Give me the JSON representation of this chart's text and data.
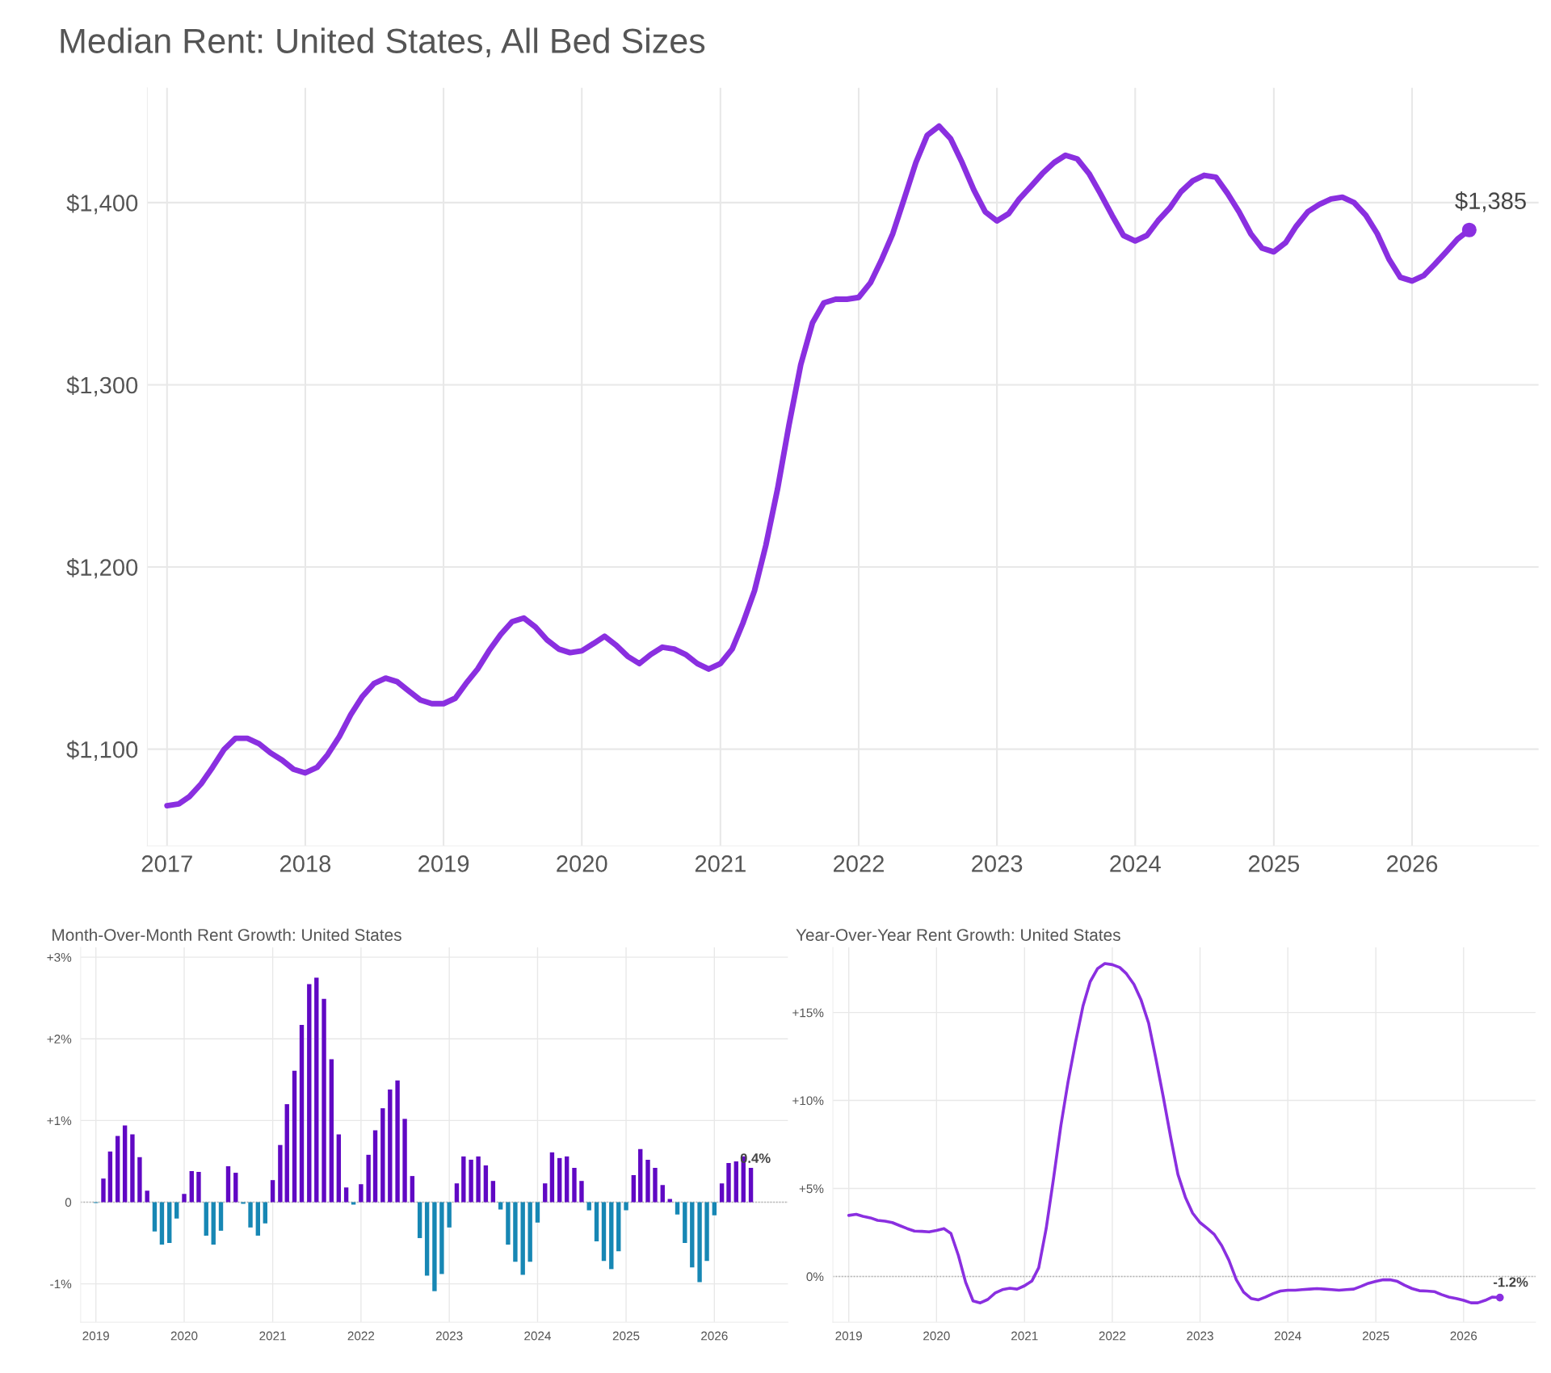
{
  "chart_data": [
    {
      "type": "line",
      "title": "Median Rent: United States, All Bed Sizes",
      "x": [
        "2017-01",
        "2017-02",
        "2017-03",
        "2017-04",
        "2017-05",
        "2017-06",
        "2017-07",
        "2017-08",
        "2017-09",
        "2017-10",
        "2017-11",
        "2017-12",
        "2018-01",
        "2018-02",
        "2018-03",
        "2018-04",
        "2018-05",
        "2018-06",
        "2018-07",
        "2018-08",
        "2018-09",
        "2018-10",
        "2018-11",
        "2018-12",
        "2019-01",
        "2019-02",
        "2019-03",
        "2019-04",
        "2019-05",
        "2019-06",
        "2019-07",
        "2019-08",
        "2019-09",
        "2019-10",
        "2019-11",
        "2019-12",
        "2020-01",
        "2020-02",
        "2020-03",
        "2020-04",
        "2020-05",
        "2020-06",
        "2020-07",
        "2020-08",
        "2020-09",
        "2020-10",
        "2020-11",
        "2020-12",
        "2021-01",
        "2021-02",
        "2021-03",
        "2021-04",
        "2021-05",
        "2021-06",
        "2021-07",
        "2021-08",
        "2021-09",
        "2021-10",
        "2021-11",
        "2021-12",
        "2022-01",
        "2022-02",
        "2022-03",
        "2022-04",
        "2022-05",
        "2022-06",
        "2022-07",
        "2022-08",
        "2022-09",
        "2022-10",
        "2022-11",
        "2022-12",
        "2023-01",
        "2023-02",
        "2023-03",
        "2023-04",
        "2023-05",
        "2023-06",
        "2023-07",
        "2023-08",
        "2023-09",
        "2023-10",
        "2023-11",
        "2023-12",
        "2024-01",
        "2024-02",
        "2024-03",
        "2024-04",
        "2024-05",
        "2024-06",
        "2024-07",
        "2024-08",
        "2024-09",
        "2024-10",
        "2024-11",
        "2024-12",
        "2025-01",
        "2025-02",
        "2025-03",
        "2025-04",
        "2025-05",
        "2025-06",
        "2025-07",
        "2025-08",
        "2025-09",
        "2025-10",
        "2025-11",
        "2025-12",
        "2026-01",
        "2026-02",
        "2026-03",
        "2026-04",
        "2026-05",
        "2026-06"
      ],
      "series": [
        {
          "color": "#8a2fe0",
          "values": [
            1069,
            1070,
            1074,
            1081,
            1090,
            1100,
            1106,
            1106,
            1103,
            1098,
            1094,
            1089,
            1087,
            1090,
            1097,
            1107,
            1119,
            1129,
            1136,
            1139,
            1137,
            1132,
            1127,
            1125,
            1125,
            1128,
            1136,
            1144,
            1154,
            1163,
            1170,
            1172,
            1167,
            1160,
            1155,
            1153,
            1154,
            1158,
            1162,
            1157,
            1151,
            1147,
            1152,
            1156,
            1155,
            1152,
            1147,
            1144,
            1147,
            1155,
            1169,
            1187,
            1212,
            1243,
            1278,
            1311,
            1334,
            1345,
            1347,
            1347,
            1348,
            1356,
            1368,
            1383,
            1402,
            1422,
            1437,
            1442,
            1435,
            1422,
            1407,
            1395,
            1390,
            1394,
            1402,
            1409,
            1416,
            1422,
            1426,
            1424,
            1416,
            1405,
            1393,
            1382,
            1379,
            1382,
            1390,
            1397,
            1406,
            1412,
            1415,
            1414,
            1405,
            1395,
            1383,
            1375,
            1373,
            1378,
            1387,
            1395,
            1399,
            1402,
            1403,
            1400,
            1393,
            1383,
            1369,
            1359,
            1357,
            1360,
            1366,
            1373,
            1380,
            1385
          ]
        }
      ],
      "xlim": [
        "2016-11-10",
        "2026-12-01"
      ],
      "xticks": [
        "2017",
        "2018",
        "2019",
        "2020",
        "2021",
        "2022",
        "2023",
        "2024",
        "2025",
        "2026"
      ],
      "ylim": [
        1047,
        1463
      ],
      "yticks": [
        {
          "value": 1100,
          "label": "$1,100"
        },
        {
          "value": 1200,
          "label": "$1,200"
        },
        {
          "value": 1300,
          "label": "$1,300"
        },
        {
          "value": 1400,
          "label": "$1,400"
        }
      ],
      "grid": true,
      "annotations": [
        {
          "text": "$1,385",
          "x": "2026-06",
          "y": 1385
        }
      ]
    },
    {
      "type": "bar",
      "title": "Month-Over-Month Rent Growth: United States",
      "x": [
        "2019-01",
        "2019-02",
        "2019-03",
        "2019-04",
        "2019-05",
        "2019-06",
        "2019-07",
        "2019-08",
        "2019-09",
        "2019-10",
        "2019-11",
        "2019-12",
        "2020-01",
        "2020-02",
        "2020-03",
        "2020-04",
        "2020-05",
        "2020-06",
        "2020-07",
        "2020-08",
        "2020-09",
        "2020-10",
        "2020-11",
        "2020-12",
        "2021-01",
        "2021-02",
        "2021-03",
        "2021-04",
        "2021-05",
        "2021-06",
        "2021-07",
        "2021-08",
        "2021-09",
        "2021-10",
        "2021-11",
        "2021-12",
        "2022-01",
        "2022-02",
        "2022-03",
        "2022-04",
        "2022-05",
        "2022-06",
        "2022-07",
        "2022-08",
        "2022-09",
        "2022-10",
        "2022-11",
        "2022-12",
        "2023-01",
        "2023-02",
        "2023-03",
        "2023-04",
        "2023-05",
        "2023-06",
        "2023-07",
        "2023-08",
        "2023-09",
        "2023-10",
        "2023-11",
        "2023-12",
        "2024-01",
        "2024-02",
        "2024-03",
        "2024-04",
        "2024-05",
        "2024-06",
        "2024-07",
        "2024-08",
        "2024-09",
        "2024-10",
        "2024-11",
        "2024-12",
        "2025-01",
        "2025-02",
        "2025-03",
        "2025-04",
        "2025-05",
        "2025-06",
        "2025-07",
        "2025-08",
        "2025-09",
        "2025-10",
        "2025-11",
        "2025-12",
        "2026-01",
        "2026-02",
        "2026-03",
        "2026-04",
        "2026-05",
        "2026-06"
      ],
      "values": [
        -0.01,
        0.29,
        0.62,
        0.81,
        0.94,
        0.83,
        0.55,
        0.14,
        -0.36,
        -0.52,
        -0.5,
        -0.2,
        0.1,
        0.38,
        0.37,
        -0.41,
        -0.52,
        -0.35,
        0.44,
        0.36,
        -0.02,
        -0.31,
        -0.41,
        -0.26,
        0.27,
        0.7,
        1.2,
        1.61,
        2.17,
        2.67,
        2.75,
        2.49,
        1.75,
        0.83,
        0.18,
        -0.03,
        0.22,
        0.58,
        0.88,
        1.15,
        1.38,
        1.49,
        1.02,
        0.32,
        -0.44,
        -0.9,
        -1.09,
        -0.88,
        -0.31,
        0.23,
        0.56,
        0.52,
        0.56,
        0.45,
        0.26,
        -0.09,
        -0.52,
        -0.73,
        -0.89,
        -0.73,
        -0.25,
        0.23,
        0.61,
        0.54,
        0.56,
        0.42,
        0.26,
        -0.1,
        -0.48,
        -0.72,
        -0.82,
        -0.6,
        -0.1,
        0.33,
        0.65,
        0.52,
        0.42,
        0.21,
        0.04,
        -0.15,
        -0.5,
        -0.8,
        -0.98,
        -0.72,
        -0.16,
        0.23,
        0.48,
        0.5,
        0.56,
        0.42
      ],
      "colors": [
        "#1787b4",
        "#6008c4",
        "#6008c4",
        "#6008c4",
        "#6008c4",
        "#6008c4",
        "#6008c4",
        "#6008c4",
        "#1787b4",
        "#1787b4",
        "#1787b4",
        "#1787b4",
        "#6008c4",
        "#6008c4",
        "#6008c4",
        "#1787b4",
        "#1787b4",
        "#1787b4",
        "#6008c4",
        "#6008c4",
        "#1787b4",
        "#1787b4",
        "#1787b4",
        "#1787b4",
        "#6008c4",
        "#6008c4",
        "#6008c4",
        "#6008c4",
        "#6008c4",
        "#6008c4",
        "#6008c4",
        "#6008c4",
        "#6008c4",
        "#6008c4",
        "#6008c4",
        "#1787b4",
        "#6008c4",
        "#6008c4",
        "#6008c4",
        "#6008c4",
        "#6008c4",
        "#6008c4",
        "#6008c4",
        "#6008c4",
        "#1787b4",
        "#1787b4",
        "#1787b4",
        "#1787b4",
        "#1787b4",
        "#6008c4",
        "#6008c4",
        "#6008c4",
        "#6008c4",
        "#6008c4",
        "#6008c4",
        "#1787b4",
        "#1787b4",
        "#1787b4",
        "#1787b4",
        "#1787b4",
        "#1787b4",
        "#6008c4",
        "#6008c4",
        "#6008c4",
        "#6008c4",
        "#6008c4",
        "#6008c4",
        "#1787b4",
        "#1787b4",
        "#1787b4",
        "#1787b4",
        "#1787b4",
        "#1787b4",
        "#6008c4",
        "#6008c4",
        "#6008c4",
        "#6008c4",
        "#6008c4",
        "#6008c4",
        "#1787b4",
        "#1787b4",
        "#1787b4",
        "#1787b4",
        "#1787b4",
        "#1787b4",
        "#6008c4",
        "#6008c4",
        "#6008c4",
        "#6008c4",
        "#6008c4"
      ],
      "xlim": [
        "2018-10-30",
        "2026-11-01"
      ],
      "xticks": [
        "2019",
        "2020",
        "2021",
        "2022",
        "2023",
        "2024",
        "2025",
        "2026"
      ],
      "ylim": [
        -1.47,
        3.12
      ],
      "yticks": [
        {
          "value": -1,
          "label": "-1%"
        },
        {
          "value": 0,
          "label": "0"
        },
        {
          "value": 1,
          "label": "+1%"
        },
        {
          "value": 2,
          "label": "+2%"
        },
        {
          "value": 3,
          "label": "+3%"
        }
      ],
      "grid": true,
      "ref_lines": [
        {
          "axis": "y",
          "value": 0,
          "color": "#aaaaaa",
          "line_style": "dotted"
        }
      ],
      "annotations": [
        {
          "text": "0.4%",
          "x": "2026-06",
          "y": 0.42
        }
      ]
    },
    {
      "type": "line",
      "title": "Year-Over-Year Rent Growth: United States",
      "x": [
        "2019-01",
        "2019-02",
        "2019-03",
        "2019-04",
        "2019-05",
        "2019-06",
        "2019-07",
        "2019-08",
        "2019-09",
        "2019-10",
        "2019-11",
        "2019-12",
        "2020-01",
        "2020-02",
        "2020-03",
        "2020-04",
        "2020-05",
        "2020-06",
        "2020-07",
        "2020-08",
        "2020-09",
        "2020-10",
        "2020-11",
        "2020-12",
        "2021-01",
        "2021-02",
        "2021-03",
        "2021-04",
        "2021-05",
        "2021-06",
        "2021-07",
        "2021-08",
        "2021-09",
        "2021-10",
        "2021-11",
        "2021-12",
        "2022-01",
        "2022-02",
        "2022-03",
        "2022-04",
        "2022-05",
        "2022-06",
        "2022-07",
        "2022-08",
        "2022-09",
        "2022-10",
        "2022-11",
        "2022-12",
        "2023-01",
        "2023-02",
        "2023-03",
        "2023-04",
        "2023-05",
        "2023-06",
        "2023-07",
        "2023-08",
        "2023-09",
        "2023-10",
        "2023-11",
        "2023-12",
        "2024-01",
        "2024-02",
        "2024-03",
        "2024-04",
        "2024-05",
        "2024-06",
        "2024-07",
        "2024-08",
        "2024-09",
        "2024-10",
        "2024-11",
        "2024-12",
        "2025-01",
        "2025-02",
        "2025-03",
        "2025-04",
        "2025-05",
        "2025-06",
        "2025-07",
        "2025-08",
        "2025-09",
        "2025-10",
        "2025-11",
        "2025-12",
        "2026-01",
        "2026-02",
        "2026-03",
        "2026-04",
        "2026-05",
        "2026-06"
      ],
      "series": [
        {
          "color": "#8a2fe0",
          "values": [
            3.47,
            3.53,
            3.42,
            3.33,
            3.19,
            3.14,
            3.06,
            2.89,
            2.72,
            2.58,
            2.56,
            2.53,
            2.61,
            2.72,
            2.44,
            1.19,
            -0.33,
            -1.39,
            -1.5,
            -1.31,
            -0.94,
            -0.75,
            -0.67,
            -0.72,
            -0.53,
            -0.25,
            0.5,
            2.72,
            5.5,
            8.56,
            11.06,
            13.3,
            15.36,
            16.75,
            17.5,
            17.78,
            17.72,
            17.56,
            17.2,
            16.6,
            15.7,
            14.4,
            12.4,
            10.2,
            7.9,
            5.8,
            4.5,
            3.6,
            3.06,
            2.72,
            2.39,
            1.75,
            0.92,
            -0.19,
            -0.89,
            -1.25,
            -1.33,
            -1.17,
            -0.97,
            -0.83,
            -0.78,
            -0.78,
            -0.75,
            -0.72,
            -0.69,
            -0.72,
            -0.75,
            -0.78,
            -0.75,
            -0.72,
            -0.56,
            -0.39,
            -0.28,
            -0.19,
            -0.19,
            -0.28,
            -0.5,
            -0.69,
            -0.81,
            -0.83,
            -0.86,
            -1.03,
            -1.17,
            -1.25,
            -1.36,
            -1.5,
            -1.5,
            -1.36,
            -1.17,
            -1.2
          ]
        }
      ],
      "xlim": [
        "2018-10-27",
        "2026-10-27"
      ],
      "xticks": [
        "2019",
        "2020",
        "2021",
        "2022",
        "2023",
        "2024",
        "2025",
        "2026"
      ],
      "ylim": [
        -2.6,
        18.7
      ],
      "yticks": [
        {
          "value": 0,
          "label": "0%"
        },
        {
          "value": 5,
          "label": "+5%"
        },
        {
          "value": 10,
          "label": "+10%"
        },
        {
          "value": 15,
          "label": "+15%"
        }
      ],
      "grid": true,
      "ref_lines": [
        {
          "axis": "y",
          "value": 0,
          "color": "#aaaaaa",
          "line_style": "dotted"
        }
      ],
      "annotations": [
        {
          "text": "-1.2%",
          "x": "2026-06",
          "y": -1.2
        }
      ]
    }
  ]
}
